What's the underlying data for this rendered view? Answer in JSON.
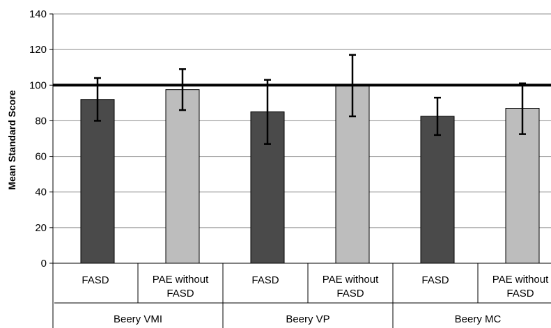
{
  "chart_data": {
    "type": "bar",
    "title": "",
    "ylabel": "Mean Standard Score",
    "xlabel": "",
    "ylim": [
      0,
      140
    ],
    "yticks": [
      0,
      20,
      40,
      60,
      80,
      100,
      120,
      140
    ],
    "grid": true,
    "reference_line": 100,
    "groups": [
      {
        "label": "Beery VMI",
        "bars": [
          {
            "label": "FASD",
            "value": 92,
            "err_low": 80,
            "err_high": 104,
            "color": "#4a4a4a"
          },
          {
            "label": "PAE without FASD",
            "value": 97.5,
            "err_low": 86,
            "err_high": 109,
            "color": "#bdbdbd"
          }
        ]
      },
      {
        "label": "Beery VP",
        "bars": [
          {
            "label": "FASD",
            "value": 85,
            "err_low": 67,
            "err_high": 103,
            "color": "#4a4a4a"
          },
          {
            "label": "PAE without FASD",
            "value": 100,
            "err_low": 82.5,
            "err_high": 117,
            "color": "#bdbdbd"
          }
        ]
      },
      {
        "label": "Beery MC",
        "bars": [
          {
            "label": "FASD",
            "value": 82.5,
            "err_low": 72,
            "err_high": 93,
            "color": "#4a4a4a"
          },
          {
            "label": "PAE without FASD",
            "value": 87,
            "err_low": 72.5,
            "err_high": 101,
            "color": "#bdbdbd"
          }
        ]
      }
    ]
  }
}
